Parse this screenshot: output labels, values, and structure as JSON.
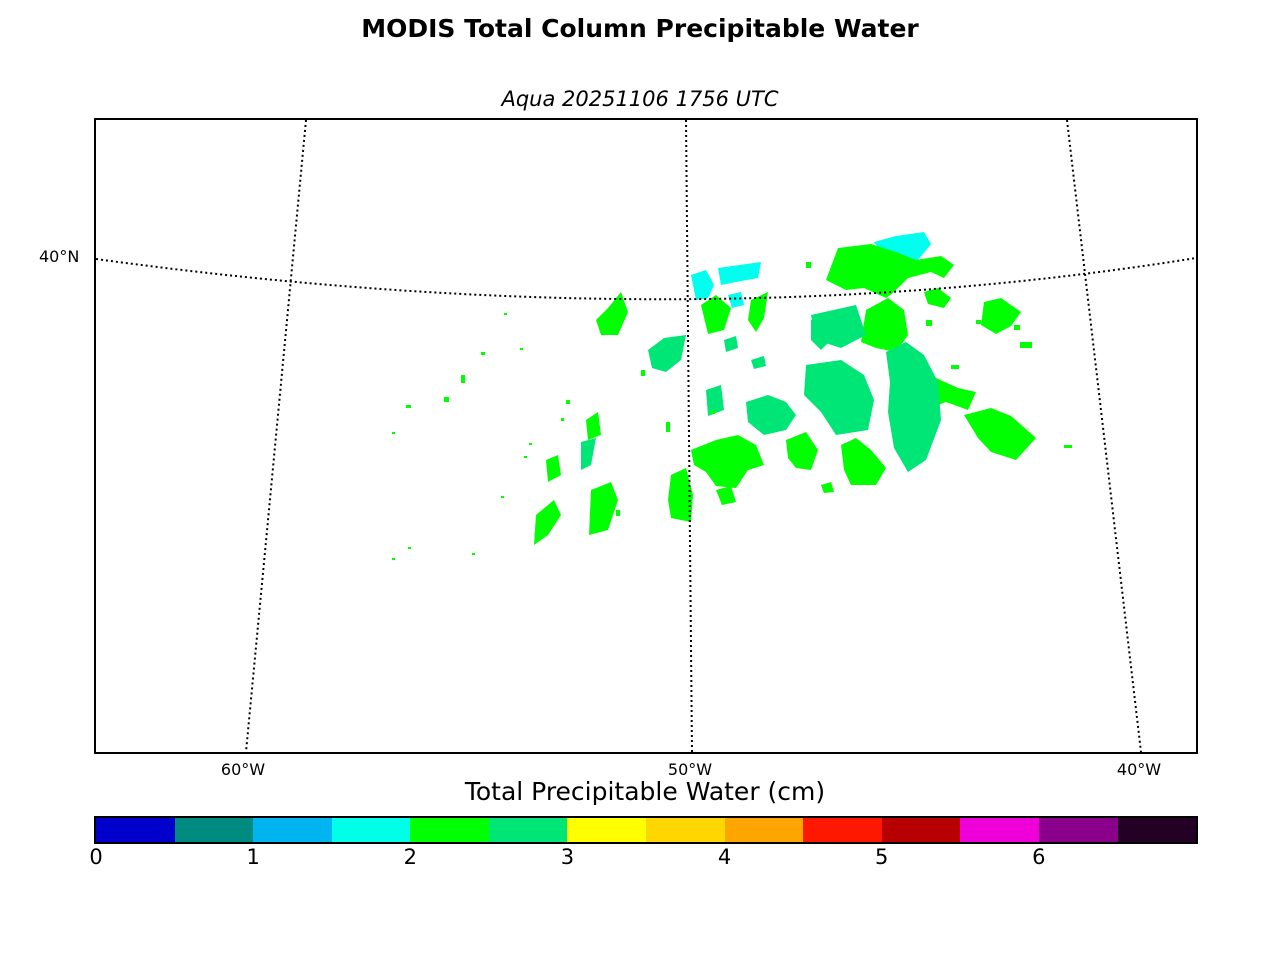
{
  "title": "MODIS Total Column Precipitable Water",
  "subtitle": "Aqua 20251106 1756 UTC",
  "map": {
    "latitude_labels": [
      "40°N"
    ],
    "longitude_labels": [
      "60°W",
      "50°W",
      "40°W"
    ],
    "graticule_style": "dotted",
    "data_colors": {
      "tpw_2_to_2_5": "#00ff00",
      "tpw_2_5_to_3": "#00e676",
      "tpw_1_5_to_2": "#00ffee"
    }
  },
  "colorbar": {
    "title": "Total Precipitable Water (cm)",
    "tick_labels": [
      "0",
      "1",
      "2",
      "3",
      "4",
      "5",
      "6"
    ],
    "range": [
      0,
      7
    ],
    "step": 0.5,
    "colors": [
      "#0000cd",
      "#008b80",
      "#00b4f0",
      "#00ffe8",
      "#00ff00",
      "#00e676",
      "#ffff00",
      "#ffd700",
      "#ffa500",
      "#ff1800",
      "#b80000",
      "#f000d8",
      "#8b008b",
      "#250025"
    ]
  }
}
